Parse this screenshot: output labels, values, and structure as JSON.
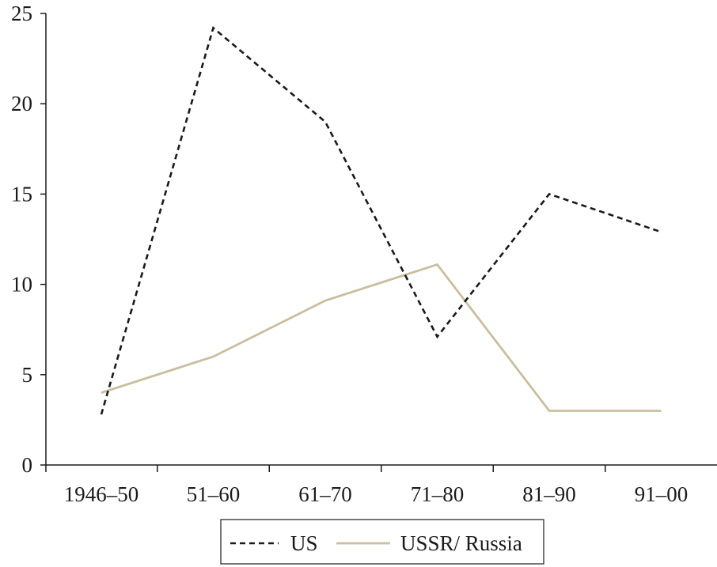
{
  "chart_data": {
    "type": "line",
    "title": "",
    "xlabel": "",
    "ylabel": "",
    "categories": [
      "1946–50",
      "51–60",
      "61–70",
      "71–80",
      "81–90",
      "91–00"
    ],
    "ylim": [
      0,
      25
    ],
    "yticks": [
      "0",
      "5",
      "10",
      "15",
      "20",
      "25"
    ],
    "grid": false,
    "legend_position": "bottom",
    "series": [
      {
        "name": "US",
        "values": [
          2.8,
          24.2,
          19.0,
          7.1,
          15.0,
          12.9
        ],
        "color": "#1a1a1a",
        "style": "dashed"
      },
      {
        "name": "USSR/ Russia",
        "values": [
          4.0,
          6.0,
          9.1,
          11.1,
          3.0,
          3.0
        ],
        "color": "#c9bea0",
        "style": "solid"
      }
    ]
  }
}
